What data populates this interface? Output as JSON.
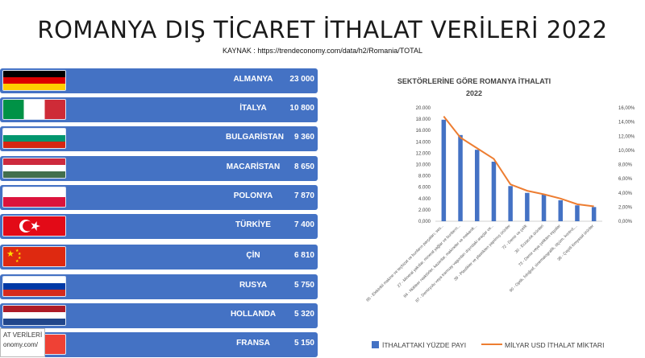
{
  "page": {
    "title": "ROMANYA DIŞ TİCARET İTHALAT VERİLERİ  2022",
    "source": "KAYNAK : https://trendeconomy.com/data/h2/Romania/TOTAL",
    "footer_tag_line1": "AT VERİLERİ",
    "footer_tag_line2": "onomy.com/"
  },
  "countries": [
    {
      "name": "ALMANYA",
      "value": "23 000",
      "flag": "germany-flag-icon",
      "bands": [
        "#000000",
        "#dd0000",
        "#ffce00"
      ],
      "bars": null
    },
    {
      "name": "İTALYA",
      "value": "10 800",
      "flag": "italy-flag-icon",
      "bands": null,
      "bars": [
        "#009246",
        "#ffffff",
        "#ce2b37"
      ]
    },
    {
      "name": "BULGARİSTAN",
      "value": "9 360",
      "flag": "bulgaria-flag-icon",
      "bands": [
        "#ffffff",
        "#00966e",
        "#d62612"
      ],
      "bars": null
    },
    {
      "name": "MACARİSTAN",
      "value": "8 650",
      "flag": "hungary-flag-icon",
      "bands": [
        "#cd2a3e",
        "#ffffff",
        "#436f4d"
      ],
      "bars": null
    },
    {
      "name": "POLONYA",
      "value": "7 870",
      "flag": "poland-flag-icon",
      "bands": [
        "#ffffff",
        "#dc143c"
      ],
      "bars": null
    },
    {
      "name": "TÜRKİYE",
      "value": "7 400",
      "flag": "turkey-flag-icon",
      "bands": [
        "#e30a17"
      ],
      "bars": null
    },
    {
      "name": "ÇİN",
      "value": "6 810",
      "flag": "china-flag-icon",
      "bands": [
        "#de2910"
      ],
      "bars": null
    },
    {
      "name": "RUSYA",
      "value": "5 750",
      "flag": "russia-flag-icon",
      "bands": [
        "#ffffff",
        "#0039a6",
        "#d52b1e"
      ],
      "bars": null
    },
    {
      "name": "HOLLANDA",
      "value": "5 320",
      "flag": "netherlands-flag-icon",
      "bands": [
        "#ae1c28",
        "#ffffff",
        "#21468b"
      ],
      "bars": null
    },
    {
      "name": "FRANSA",
      "value": "5 150",
      "flag": "france-flag-icon",
      "bands": null,
      "bars": [
        "#0055a4",
        "#ffffff",
        "#ef4135"
      ]
    }
  ],
  "chart_data": {
    "type": "bar",
    "title_line1": "SEKTÖRLERİNE GÖRE ROMANYA İTHALATI",
    "title_line2": "2022",
    "categories": [
      "85 - Elektrikli makine ve teçhizat ve bunların parçaları; ses...",
      "27 - Mineral yakıtlar, mineral yağlar ve bunların...",
      "84 - Nükleer reaktörler, kazanlar, makineler ve mekanik...",
      "87 - Demiryolu veya tramvay vagonları dışındaki araçlar ve...",
      "39 - Plastikler ve plastikten yapılmış ürünler",
      "72 - Demir ve çelik",
      "30 - Eczacılık ürünleri",
      "73 - Demir veya çelikten eşyalar",
      "90 - Optik, fotoğraf, sinematografik, ölçüm, kontrol,...",
      "38 - Çeşitli kimyasal ürünler"
    ],
    "series": [
      {
        "name": "İTHALATTAKİ YÜZDE PAYI",
        "axis": "left",
        "color": "#4472c4",
        "values": [
          17900,
          15200,
          12600,
          10500,
          6200,
          5000,
          4700,
          3700,
          2800,
          2500
        ]
      },
      {
        "name": "MİLYAR USD İTHALAT MİKTARI",
        "axis": "right",
        "color": "#ed7d31",
        "values": [
          14.8,
          11.8,
          10.3,
          8.8,
          5.2,
          4.3,
          3.8,
          3.2,
          2.4,
          2.1
        ]
      }
    ],
    "y_left": {
      "min": 0,
      "max": 20000,
      "step": 2000,
      "ticks": [
        "0,000",
        "2.000",
        "4.000",
        "6.000",
        "8.000",
        "10.000",
        "12.000",
        "14.000",
        "16.000",
        "18.000",
        "20.000"
      ]
    },
    "y_right": {
      "min": 0,
      "max": 16,
      "step": 2,
      "ticks": [
        "0,00%",
        "2,00%",
        "4,00%",
        "6,00%",
        "8,00%",
        "10,00%",
        "12,00%",
        "14,00%",
        "16,00%"
      ]
    },
    "legend_position": "bottom"
  }
}
